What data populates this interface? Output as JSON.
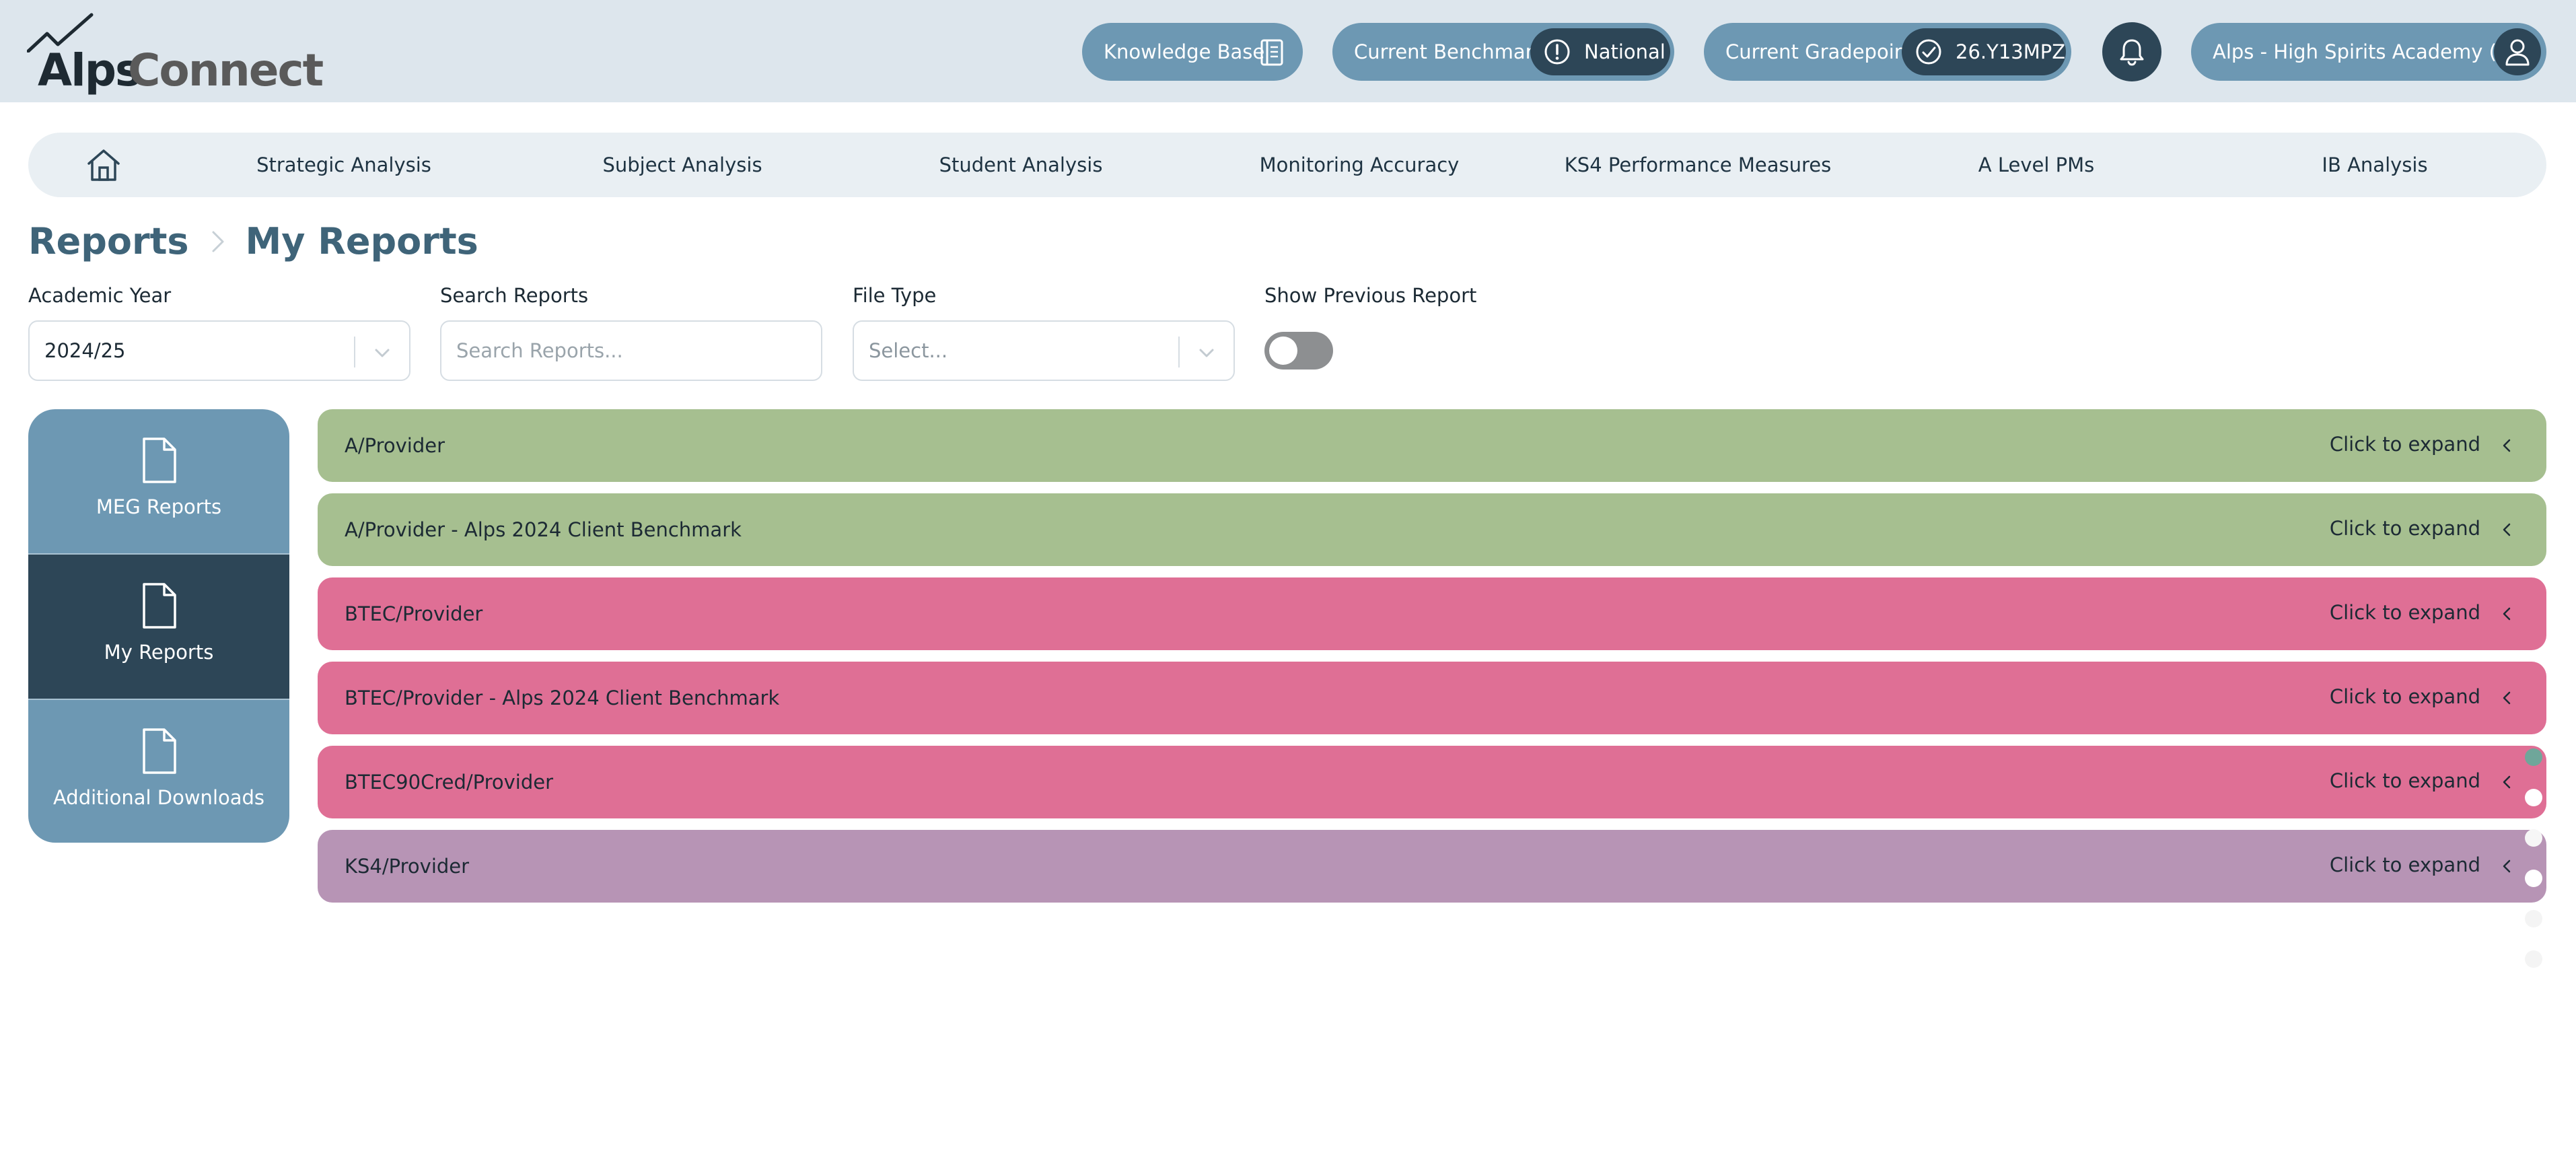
{
  "header": {
    "logo_part1": "Alps",
    "logo_part2": "Connect",
    "knowledge_base": "Knowledge Base",
    "benchmark_label": "Current Benchmark",
    "benchmark_value": "National",
    "gradepoint_label": "Current Gradepoint",
    "gradepoint_value": "26.Y13MPZ",
    "user_label": "Alps - High Spirits Academy (E)"
  },
  "nav": {
    "items": [
      {
        "label": "Strategic Analysis"
      },
      {
        "label": "Subject Analysis"
      },
      {
        "label": "Student Analysis"
      },
      {
        "label": "Monitoring Accuracy"
      },
      {
        "label": "KS4 Performance Measures"
      },
      {
        "label": "A Level PMs"
      },
      {
        "label": "IB Analysis"
      }
    ]
  },
  "breadcrumb": {
    "root": "Reports",
    "current": "My Reports"
  },
  "filters": {
    "academic_year_label": "Academic Year",
    "academic_year_value": "2024/25",
    "search_label": "Search Reports",
    "search_placeholder": "Search Reports...",
    "file_type_label": "File Type",
    "file_type_placeholder": "Select...",
    "show_previous_label": "Show Previous Report"
  },
  "sidemenu": {
    "items": [
      {
        "label": "MEG Reports"
      },
      {
        "label": "My Reports"
      },
      {
        "label": "Additional Downloads"
      }
    ]
  },
  "reports": {
    "expand_text": "Click to expand",
    "rows": [
      {
        "label": "A/Provider"
      },
      {
        "label": "A/Provider - Alps 2024 Client Benchmark"
      },
      {
        "label": "BTEC/Provider"
      },
      {
        "label": "BTEC/Provider - Alps 2024 Client Benchmark"
      },
      {
        "label": "BTEC90Cred/Provider"
      },
      {
        "label": "KS4/Provider"
      }
    ]
  },
  "colors": {
    "header_bg": "#dde6ed",
    "pill_blue": "#6d98b3",
    "dark_navy": "#2d4657",
    "row_green": "#a6bf90",
    "row_pink": "#df6f95",
    "row_purple": "#b794b5"
  }
}
